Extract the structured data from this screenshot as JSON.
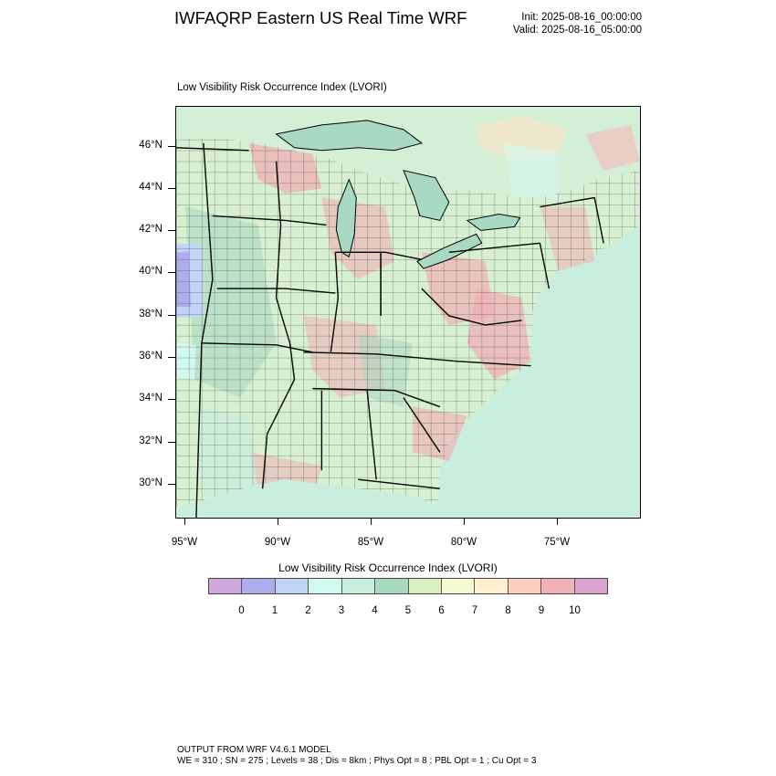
{
  "header": {
    "title": "IWFAQRP Eastern US Real Time WRF",
    "init": "Init: 2025-08-16_00:00:00",
    "valid": "Valid: 2025-08-16_05:00:00"
  },
  "field_title": "Low Visibility Risk Occurrence Index   (LVORI)",
  "map": {
    "lat_labels": [
      "46°N",
      "44°N",
      "42°N",
      "40°N",
      "38°N",
      "36°N",
      "34°N",
      "32°N",
      "30°N"
    ],
    "lon_labels": [
      "95°W",
      "90°W",
      "85°W",
      "80°W",
      "75°W"
    ],
    "colors": {
      "ocean": "#c9eedd",
      "lake": "#a8d9c3",
      "land_base": "#d7f0d2",
      "high_risk": "#f0b0b4",
      "borders": "#000000"
    }
  },
  "legend": {
    "title": "Low Visibility Risk Occurrence Index  (LVORI)",
    "labels": [
      "0",
      "1",
      "2",
      "3",
      "4",
      "5",
      "6",
      "7",
      "8",
      "9",
      "10"
    ],
    "colors": [
      "#cfa8dc",
      "#adacec",
      "#c2d3f8",
      "#d2f8f0",
      "#c9eedd",
      "#a9d9c0",
      "#d8f0c0",
      "#f5fbd5",
      "#fff0d2",
      "#fcd0c0",
      "#f0b0b4",
      "#dca4cc"
    ]
  },
  "footer": {
    "line1": "OUTPUT FROM WRF V4.6.1 MODEL",
    "line2": "WE = 310 ; SN = 275 ; Levels = 38 ; Dis = 8km ; Phys Opt = 8 ; PBL Opt = 1 ; Cu Opt = 3"
  }
}
